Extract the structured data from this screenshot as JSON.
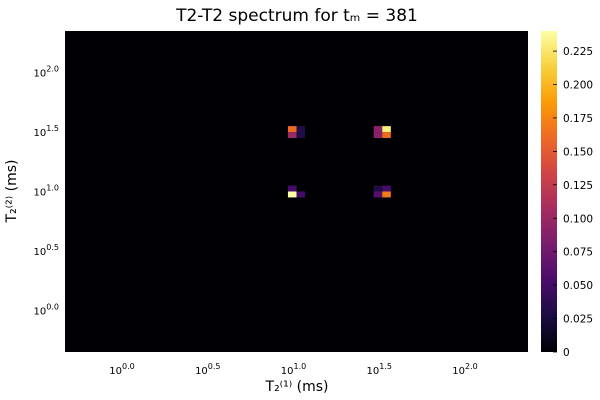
{
  "chart_data": {
    "type": "heatmap",
    "title": "T2-T2 spectrum for tₘ = 381",
    "xlabel": "T₂⁽¹⁾ (ms)",
    "ylabel": "T₂⁽²⁾ (ms)",
    "x_scale": "log10",
    "y_scale": "log10",
    "xlim_log10": [
      -0.35,
      2.35
    ],
    "ylim_log10": [
      -0.35,
      2.35
    ],
    "x_ticks_log10": [
      0.0,
      0.5,
      1.0,
      1.5,
      2.0
    ],
    "y_ticks_log10": [
      0.0,
      0.5,
      1.0,
      1.5,
      2.0
    ],
    "x_tick_labels": [
      {
        "base": "10",
        "exp": "0.0"
      },
      {
        "base": "10",
        "exp": "0.5"
      },
      {
        "base": "10",
        "exp": "1.0"
      },
      {
        "base": "10",
        "exp": "1.5"
      },
      {
        "base": "10",
        "exp": "2.0"
      }
    ],
    "y_tick_labels": [
      {
        "base": "10",
        "exp": "0.0"
      },
      {
        "base": "10",
        "exp": "0.5"
      },
      {
        "base": "10",
        "exp": "1.0"
      },
      {
        "base": "10",
        "exp": "1.5"
      },
      {
        "base": "10",
        "exp": "2.0"
      }
    ],
    "cell_size_log10": 0.05,
    "background_value": 0,
    "cells": [
      {
        "x": 0.975,
        "y": 1.525,
        "value": 0.16
      },
      {
        "x": 1.025,
        "y": 1.525,
        "value": 0.03
      },
      {
        "x": 0.975,
        "y": 1.475,
        "value": 0.1
      },
      {
        "x": 1.025,
        "y": 1.475,
        "value": 0.03
      },
      {
        "x": 1.475,
        "y": 1.525,
        "value": 0.09
      },
      {
        "x": 1.525,
        "y": 1.525,
        "value": 0.23
      },
      {
        "x": 1.475,
        "y": 1.475,
        "value": 0.09
      },
      {
        "x": 1.525,
        "y": 1.475,
        "value": 0.16
      },
      {
        "x": 0.975,
        "y": 1.025,
        "value": 0.05
      },
      {
        "x": 0.975,
        "y": 0.975,
        "value": 0.24
      },
      {
        "x": 1.025,
        "y": 0.975,
        "value": 0.05
      },
      {
        "x": 1.475,
        "y": 1.025,
        "value": 0.03
      },
      {
        "x": 1.525,
        "y": 1.025,
        "value": 0.05
      },
      {
        "x": 1.475,
        "y": 0.975,
        "value": 0.06
      },
      {
        "x": 1.525,
        "y": 0.975,
        "value": 0.17
      }
    ],
    "colorbar": {
      "colormap": "inferno",
      "range": [
        0,
        0.24
      ],
      "ticks": [
        0,
        0.025,
        0.05,
        0.075,
        0.1,
        0.125,
        0.15,
        0.175,
        0.2,
        0.225
      ],
      "tick_labels": [
        "0",
        "0.025",
        "0.050",
        "0.075",
        "0.100",
        "0.125",
        "0.150",
        "0.175",
        "0.200",
        "0.225"
      ]
    },
    "grid": false
  },
  "colors": {
    "background": "#ffffff",
    "text": "#000000",
    "inferno_stops": [
      "#000004",
      "#1b0c41",
      "#4a0c6b",
      "#781c6d",
      "#a52c60",
      "#cf4446",
      "#ed6925",
      "#fb9b06",
      "#f7d13d",
      "#fcffa4"
    ]
  }
}
